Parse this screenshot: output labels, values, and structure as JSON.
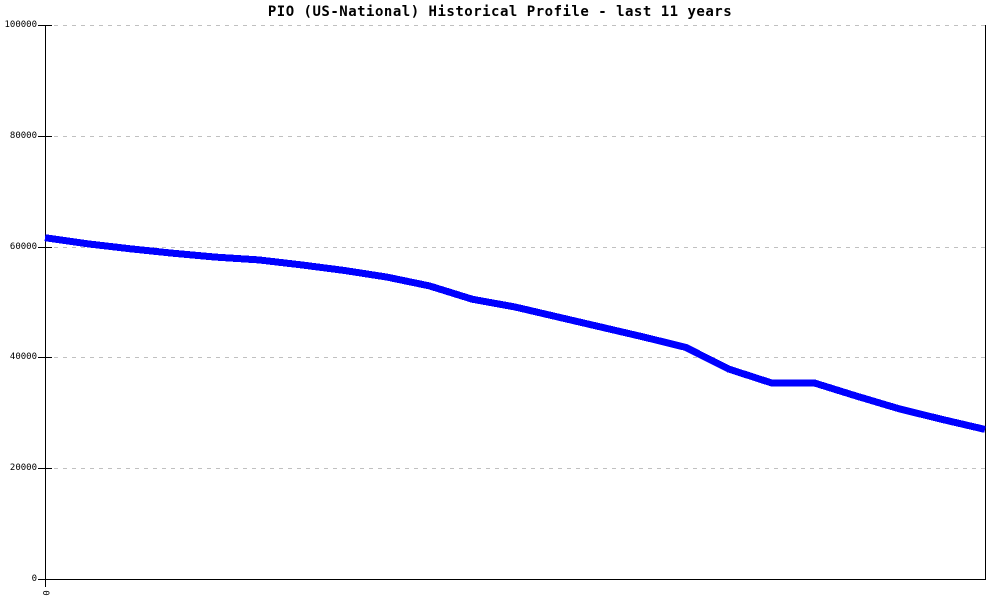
{
  "chart_data": {
    "type": "line",
    "title": "PIO (US-National) Historical Profile - last 11 years",
    "xlabel": "",
    "ylabel": "",
    "ylim": [
      0,
      100000
    ],
    "yticks": [
      0,
      20000,
      40000,
      60000,
      80000,
      100000
    ],
    "ytick_labels": [
      "0",
      "20000",
      "40000",
      "60000",
      "80000",
      "100000"
    ],
    "xtick_labels": [
      "0"
    ],
    "xtick_rotated": true,
    "grid": "horizontal-dashed",
    "legend_position": "none",
    "x": [
      0,
      1,
      2,
      3,
      4,
      5,
      6,
      7,
      8,
      9,
      10,
      11,
      12,
      13,
      14,
      15,
      16,
      17,
      18,
      19,
      20,
      21,
      22
    ],
    "series": [
      {
        "name": "PIO (US-National)",
        "color": "#0000ff",
        "stroke_width": 7,
        "values": [
          61600,
          60500,
          59600,
          58800,
          58100,
          57600,
          56700,
          55700,
          54500,
          52900,
          50500,
          49100,
          47300,
          45500,
          43700,
          41800,
          37900,
          35400,
          35400,
          33000,
          30700,
          28800,
          27000
        ]
      }
    ],
    "colors": {
      "background": "#ffffff",
      "axis": "#000000",
      "grid": "#c0c0c0",
      "title": "#000000",
      "tick_label": "#000000"
    }
  }
}
